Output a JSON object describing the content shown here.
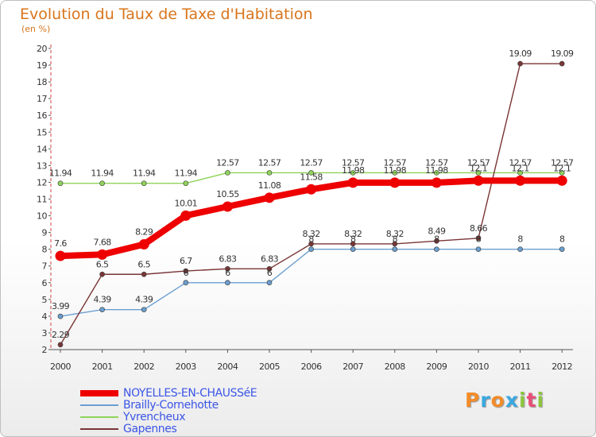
{
  "title": "Evolution du Taux de Taxe d'Habitation",
  "subtitle": "(en %)",
  "logo": {
    "text": "Proxiti",
    "colors": [
      "#f28c28",
      "#3aa8e0",
      "#f28c28",
      "#3aa8e0",
      "#8dc63f",
      "#e94e77",
      "#8dc63f"
    ]
  },
  "chart_data": {
    "type": "line",
    "x": [
      "2000",
      "2001",
      "2002",
      "2003",
      "2004",
      "2005",
      "2006",
      "2007",
      "2008",
      "2009",
      "2010",
      "2011",
      "2012"
    ],
    "ylim": [
      2,
      20
    ],
    "yticks": [
      2,
      3,
      4,
      5,
      6,
      7,
      8,
      9,
      10,
      11,
      12,
      13,
      14,
      15,
      16,
      17,
      18,
      19,
      20
    ],
    "grid": false,
    "legend_position": "bottom-left",
    "series": [
      {
        "name": "NOYELLES-EN-CHAUSSéE",
        "color": "#ee0000",
        "values": [
          7.6,
          7.68,
          8.29,
          10.01,
          10.55,
          11.08,
          11.58,
          11.98,
          11.98,
          11.98,
          12.1,
          12.1,
          12.1
        ],
        "labels": [
          "7.6",
          "7.68",
          "8.29",
          "10.01",
          "10.55",
          "11.08",
          "11.58",
          "11.98",
          "11.98",
          "11.98",
          "12.1",
          "12.1",
          "12.1"
        ]
      },
      {
        "name": "Brailly-Cornehotte",
        "color": "#6b9fd1",
        "values": [
          3.99,
          4.39,
          4.39,
          6,
          6,
          6,
          8,
          8,
          8,
          8,
          8,
          8,
          8
        ],
        "labels": [
          "3.99",
          "4.39",
          "4.39",
          "6",
          "6",
          "6",
          "8",
          "8",
          "8",
          "8",
          "8",
          "8",
          "8"
        ]
      },
      {
        "name": "Yvrencheux",
        "color": "#8fd45a",
        "values": [
          11.94,
          11.94,
          11.94,
          11.94,
          12.57,
          12.57,
          12.57,
          12.57,
          12.57,
          12.57,
          12.57,
          12.57,
          12.57
        ],
        "labels": [
          "11.94",
          "11.94",
          "11.94",
          "11.94",
          "12.57",
          "12.57",
          "12.57",
          "12.57",
          "12.57",
          "12.57",
          "12.57",
          "12.57",
          "12.57"
        ]
      },
      {
        "name": "Gapennes",
        "color": "#7a3535",
        "values": [
          2.29,
          6.5,
          6.5,
          6.7,
          6.83,
          6.83,
          8.32,
          8.32,
          8.32,
          8.49,
          8.66,
          19.09,
          19.09
        ],
        "labels": [
          "2.29",
          "6.5",
          "6.5",
          "6.7",
          "6.83",
          "6.83",
          "8.32",
          "8.32",
          "8.32",
          "8.49",
          "8.66",
          "19.09",
          "19.09"
        ]
      }
    ]
  }
}
